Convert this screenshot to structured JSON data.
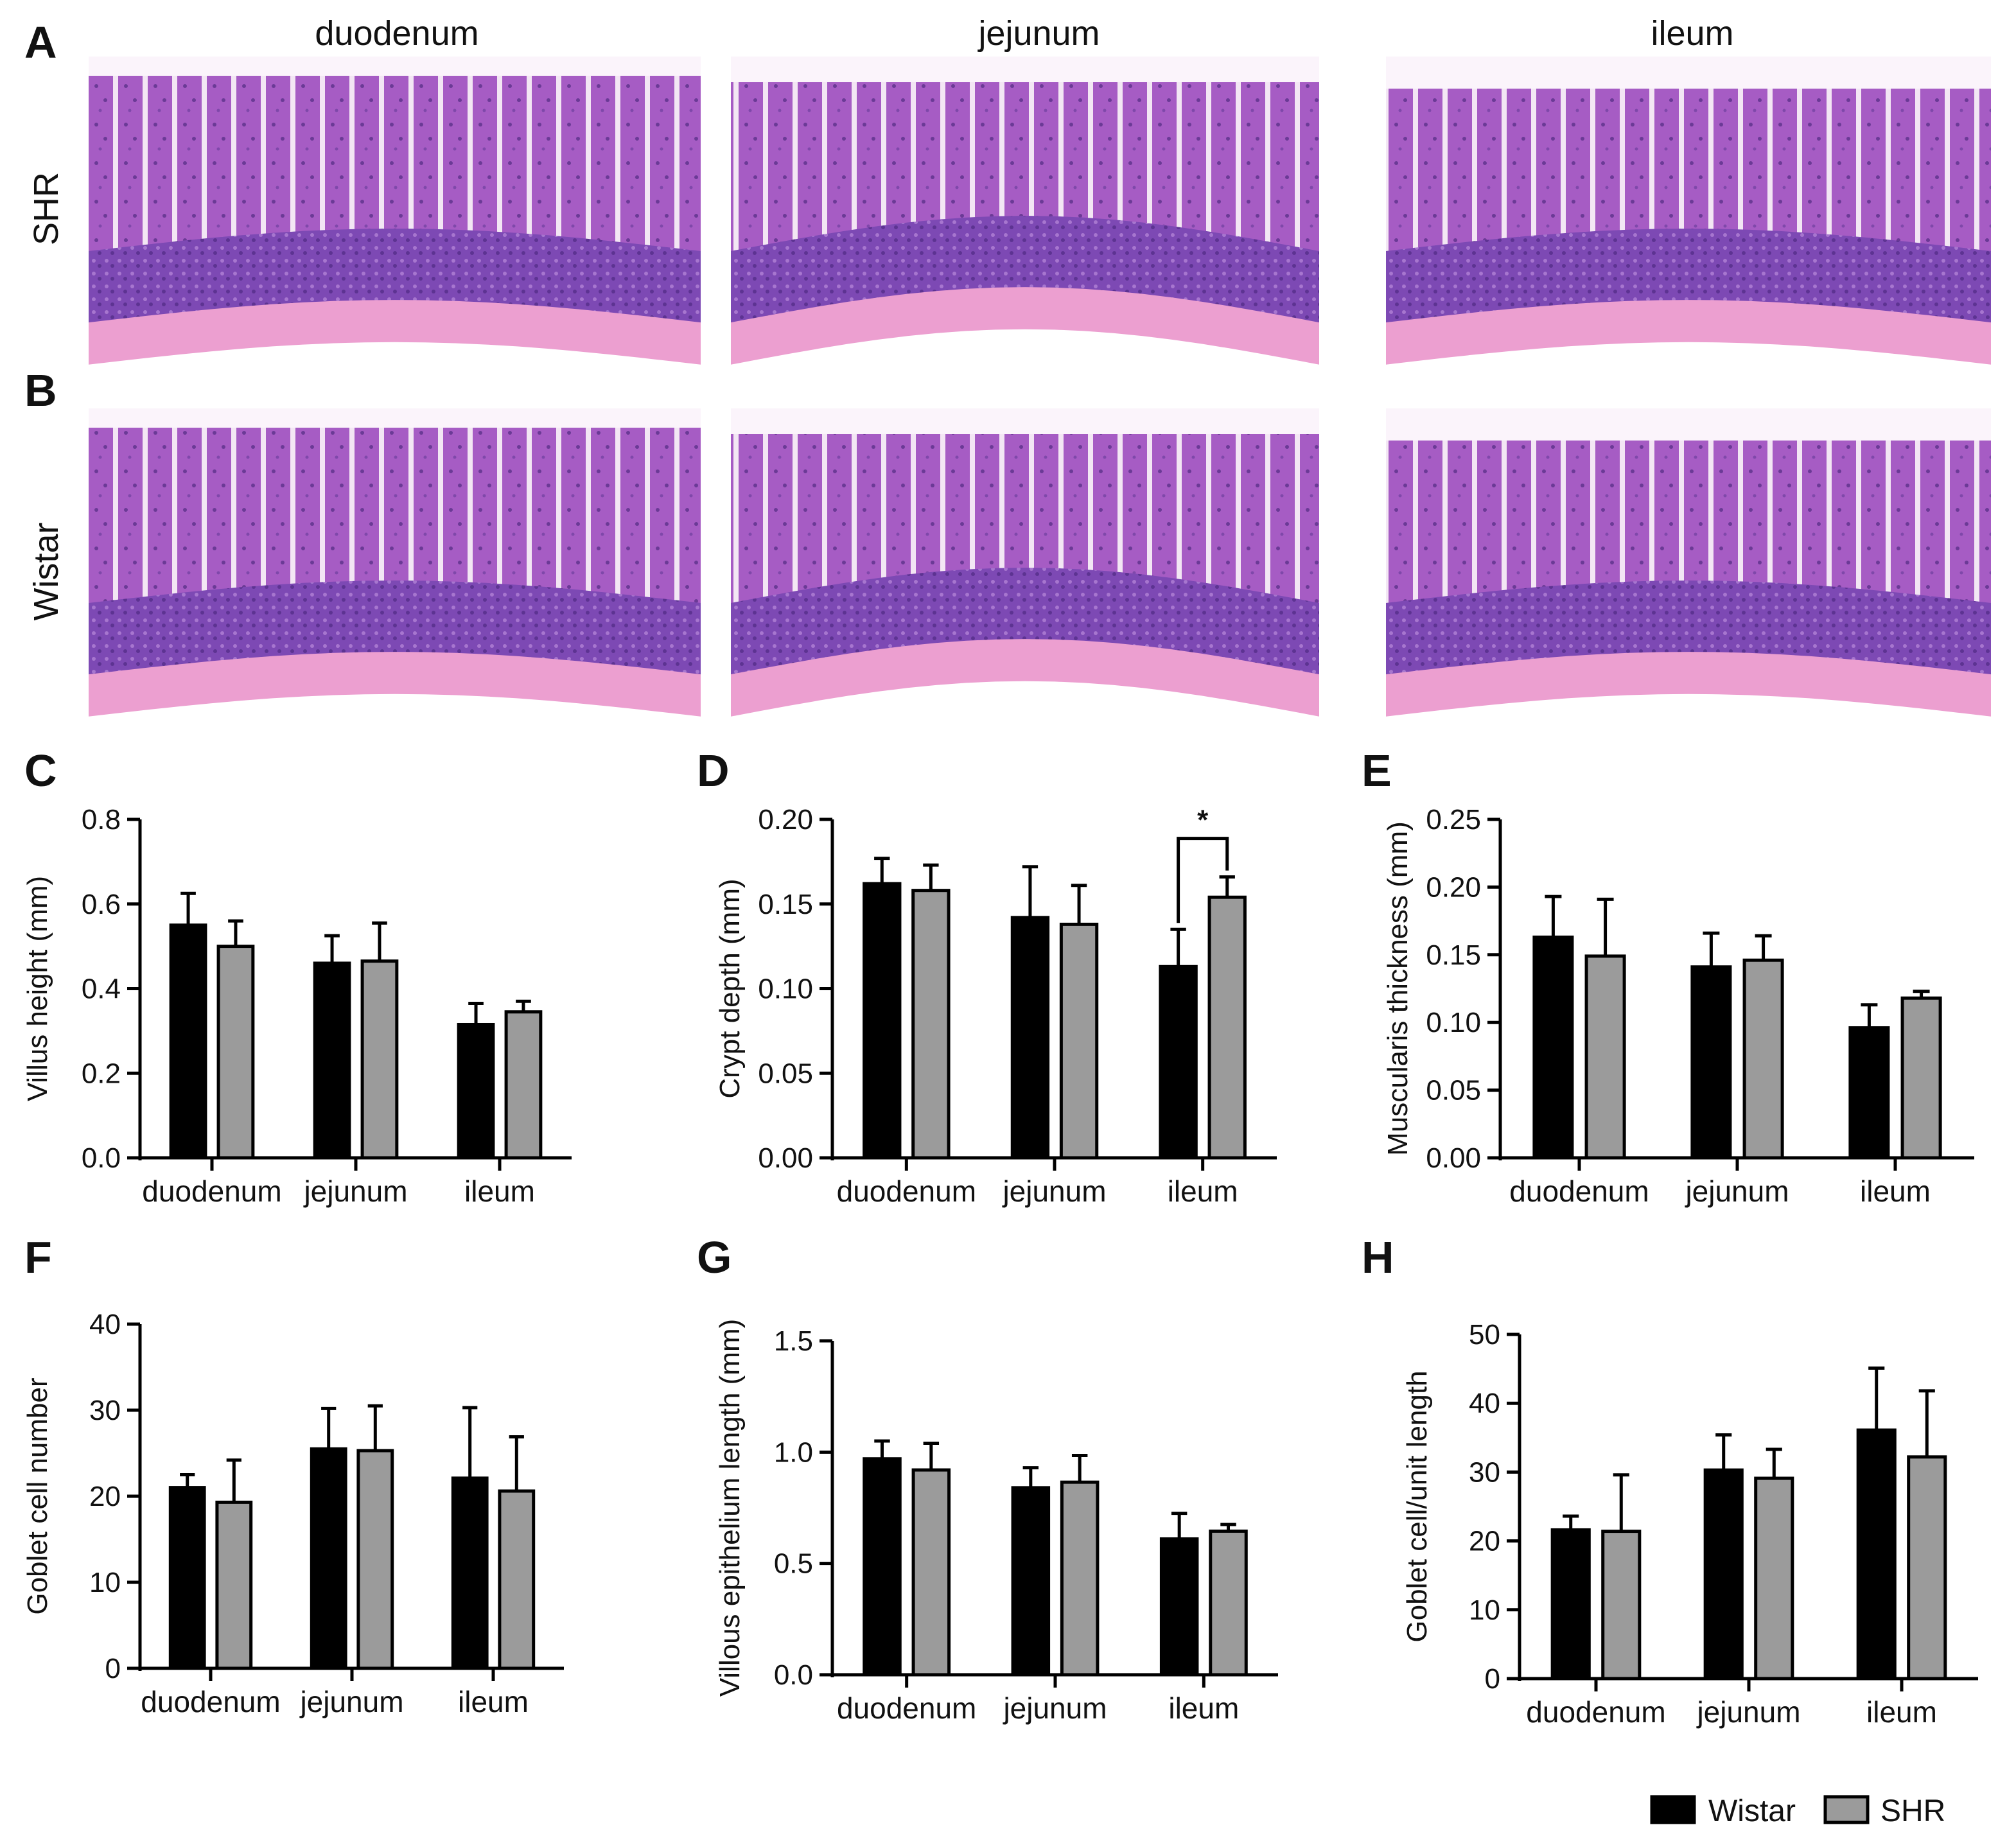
{
  "panel_labels": [
    "A",
    "B",
    "C",
    "D",
    "E",
    "F",
    "G",
    "H"
  ],
  "column_titles": [
    "duodenum",
    "jejunum",
    "ileum"
  ],
  "row_labels": [
    "SHR",
    "Wistar"
  ],
  "colors": {
    "wistar": "#000000",
    "shr": "#9b9b9b",
    "tissue_bg": "#ffffff",
    "villus": "#a65cc4",
    "crypt": "#7d49b4",
    "muscle": "#ec9fd0",
    "lumen": "#fbf4fb"
  },
  "images": [
    {
      "row": "SHR",
      "segment": "duodenum",
      "icon": "he-histology-section"
    },
    {
      "row": "SHR",
      "segment": "jejunum",
      "icon": "he-histology-section"
    },
    {
      "row": "SHR",
      "segment": "ileum",
      "icon": "he-histology-section"
    },
    {
      "row": "Wistar",
      "segment": "duodenum",
      "icon": "he-histology-section"
    },
    {
      "row": "Wistar",
      "segment": "jejunum",
      "icon": "he-histology-section"
    },
    {
      "row": "Wistar",
      "segment": "ileum",
      "icon": "he-histology-section"
    }
  ],
  "legend": [
    {
      "label": "Wistar",
      "color": "#000000"
    },
    {
      "label": "SHR",
      "color": "#9b9b9b"
    }
  ],
  "chart_data": [
    {
      "panel": "C",
      "type": "bar",
      "ylabel": "Villus height (mm)",
      "categories": [
        "duodenum",
        "jejunum",
        "ileum"
      ],
      "ylim": [
        0,
        0.8
      ],
      "yticks": [
        "0.0",
        "0.2",
        "0.4",
        "0.6",
        "0.8"
      ],
      "series": [
        {
          "name": "Wistar",
          "values": [
            0.55,
            0.46,
            0.315
          ],
          "errors": [
            0.075,
            0.065,
            0.05
          ]
        },
        {
          "name": "SHR",
          "values": [
            0.5,
            0.465,
            0.345
          ],
          "errors": [
            0.06,
            0.09,
            0.025
          ]
        }
      ]
    },
    {
      "panel": "D",
      "type": "bar",
      "ylabel": "Crypt depth (mm)",
      "categories": [
        "duodenum",
        "jejunum",
        "ileum"
      ],
      "ylim": [
        0,
        0.2
      ],
      "yticks": [
        "0.00",
        "0.05",
        "0.10",
        "0.15",
        "0.20"
      ],
      "series": [
        {
          "name": "Wistar",
          "values": [
            0.162,
            0.142,
            0.113
          ],
          "errors": [
            0.015,
            0.03,
            0.022
          ]
        },
        {
          "name": "SHR",
          "values": [
            0.158,
            0.138,
            0.154
          ],
          "errors": [
            0.015,
            0.023,
            0.012
          ]
        }
      ],
      "annotations": [
        {
          "category": "ileum",
          "text": "*"
        }
      ]
    },
    {
      "panel": "E",
      "type": "bar",
      "ylabel": "Muscularis thickness (mm)",
      "categories": [
        "duodenum",
        "jejunum",
        "ileum"
      ],
      "ylim": [
        0,
        0.25
      ],
      "yticks": [
        "0.00",
        "0.05",
        "0.10",
        "0.15",
        "0.20",
        "0.25"
      ],
      "series": [
        {
          "name": "Wistar",
          "values": [
            0.163,
            0.141,
            0.096
          ],
          "errors": [
            0.03,
            0.025,
            0.017
          ]
        },
        {
          "name": "SHR",
          "values": [
            0.149,
            0.146,
            0.118
          ],
          "errors": [
            0.042,
            0.018,
            0.005
          ]
        }
      ]
    },
    {
      "panel": "F",
      "type": "bar",
      "ylabel": "Goblet cell number",
      "categories": [
        "duodenum",
        "jejunum",
        "ileum"
      ],
      "ylim": [
        0,
        40
      ],
      "yticks": [
        "0",
        "10",
        "20",
        "30",
        "40"
      ],
      "series": [
        {
          "name": "Wistar",
          "values": [
            21.0,
            25.5,
            22.1
          ],
          "errors": [
            1.5,
            4.7,
            8.2
          ]
        },
        {
          "name": "SHR",
          "values": [
            19.3,
            25.3,
            20.6
          ],
          "errors": [
            4.9,
            5.2,
            6.3
          ]
        }
      ]
    },
    {
      "panel": "G",
      "type": "bar",
      "ylabel": "Villous epithelium length (mm)",
      "categories": [
        "duodenum",
        "jejunum",
        "ileum"
      ],
      "ylim": [
        0,
        1.5
      ],
      "yticks": [
        "0.0",
        "0.5",
        "1.0",
        "1.5"
      ],
      "series": [
        {
          "name": "Wistar",
          "values": [
            0.97,
            0.84,
            0.61
          ],
          "errors": [
            0.08,
            0.09,
            0.115
          ]
        },
        {
          "name": "SHR",
          "values": [
            0.92,
            0.865,
            0.645
          ],
          "errors": [
            0.12,
            0.12,
            0.03
          ]
        }
      ]
    },
    {
      "panel": "H",
      "type": "bar",
      "ylabel": "Goblet cell/unit length",
      "categories": [
        "duodenum",
        "jejunum",
        "ileum"
      ],
      "ylim": [
        0,
        50
      ],
      "yticks": [
        "0",
        "10",
        "20",
        "30",
        "40",
        "50"
      ],
      "series": [
        {
          "name": "Wistar",
          "values": [
            21.6,
            30.3,
            36.1
          ],
          "errors": [
            2.0,
            5.1,
            9.0
          ]
        },
        {
          "name": "SHR",
          "values": [
            21.4,
            29.1,
            32.2
          ],
          "errors": [
            8.2,
            4.2,
            9.6
          ]
        }
      ]
    }
  ]
}
